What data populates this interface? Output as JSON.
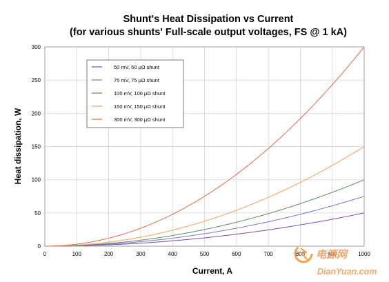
{
  "chart_data": {
    "type": "line",
    "title": "Shunt's Heat Dissipation vs Current",
    "subtitle": "(for various shunts' Full-scale output voltages, FS @ 1 kA)",
    "xlabel": "Current, A",
    "ylabel": "Heat dissipation, W",
    "xlim": [
      0,
      1000
    ],
    "ylim": [
      0,
      300
    ],
    "xticks": [
      0,
      100,
      200,
      300,
      400,
      500,
      600,
      700,
      800,
      900,
      1000
    ],
    "yticks": [
      0,
      50,
      100,
      150,
      200,
      250,
      300
    ],
    "xtick_labels": [
      "0",
      "100",
      "200",
      "300",
      "400",
      "500",
      "600",
      "700",
      "800",
      "900",
      "1000"
    ],
    "ytick_labels": [
      "0",
      "50",
      "100",
      "150",
      "200",
      "250",
      "300"
    ],
    "grid": true,
    "legend_position": "top-left",
    "x": [
      0,
      100,
      200,
      300,
      400,
      500,
      600,
      700,
      800,
      900,
      1000
    ],
    "series": [
      {
        "name": "50 mV, 50 μΩ shunt",
        "color": "#7b4fa6",
        "values": [
          0,
          0.5,
          2,
          4.5,
          8,
          12.5,
          18,
          24.5,
          32,
          40.5,
          50
        ]
      },
      {
        "name": "75 mV, 75 μΩ shunt",
        "color": "#7777cc",
        "values": [
          0,
          0.75,
          3,
          6.75,
          12,
          18.75,
          27,
          36.75,
          48,
          60.75,
          75
        ]
      },
      {
        "name": "100 mV, 100 μΩ shunt",
        "color": "#5e8a5e",
        "values": [
          0,
          1,
          4,
          9,
          16,
          25,
          36,
          49,
          64,
          81,
          100
        ]
      },
      {
        "name": "150 mV, 150 μΩ shunt",
        "color": "#f0a060",
        "values": [
          0,
          1.5,
          6,
          13.5,
          24,
          37.5,
          54,
          73.5,
          96,
          121.5,
          150
        ]
      },
      {
        "name": "300 mV, 300 μΩ shunt",
        "color": "#e06a4a",
        "values": [
          0,
          3,
          12,
          27,
          48,
          75,
          108,
          147,
          192,
          243,
          300
        ]
      }
    ]
  },
  "watermark": {
    "logo_text": "电源网",
    "site_text": "DianYuan.com"
  }
}
